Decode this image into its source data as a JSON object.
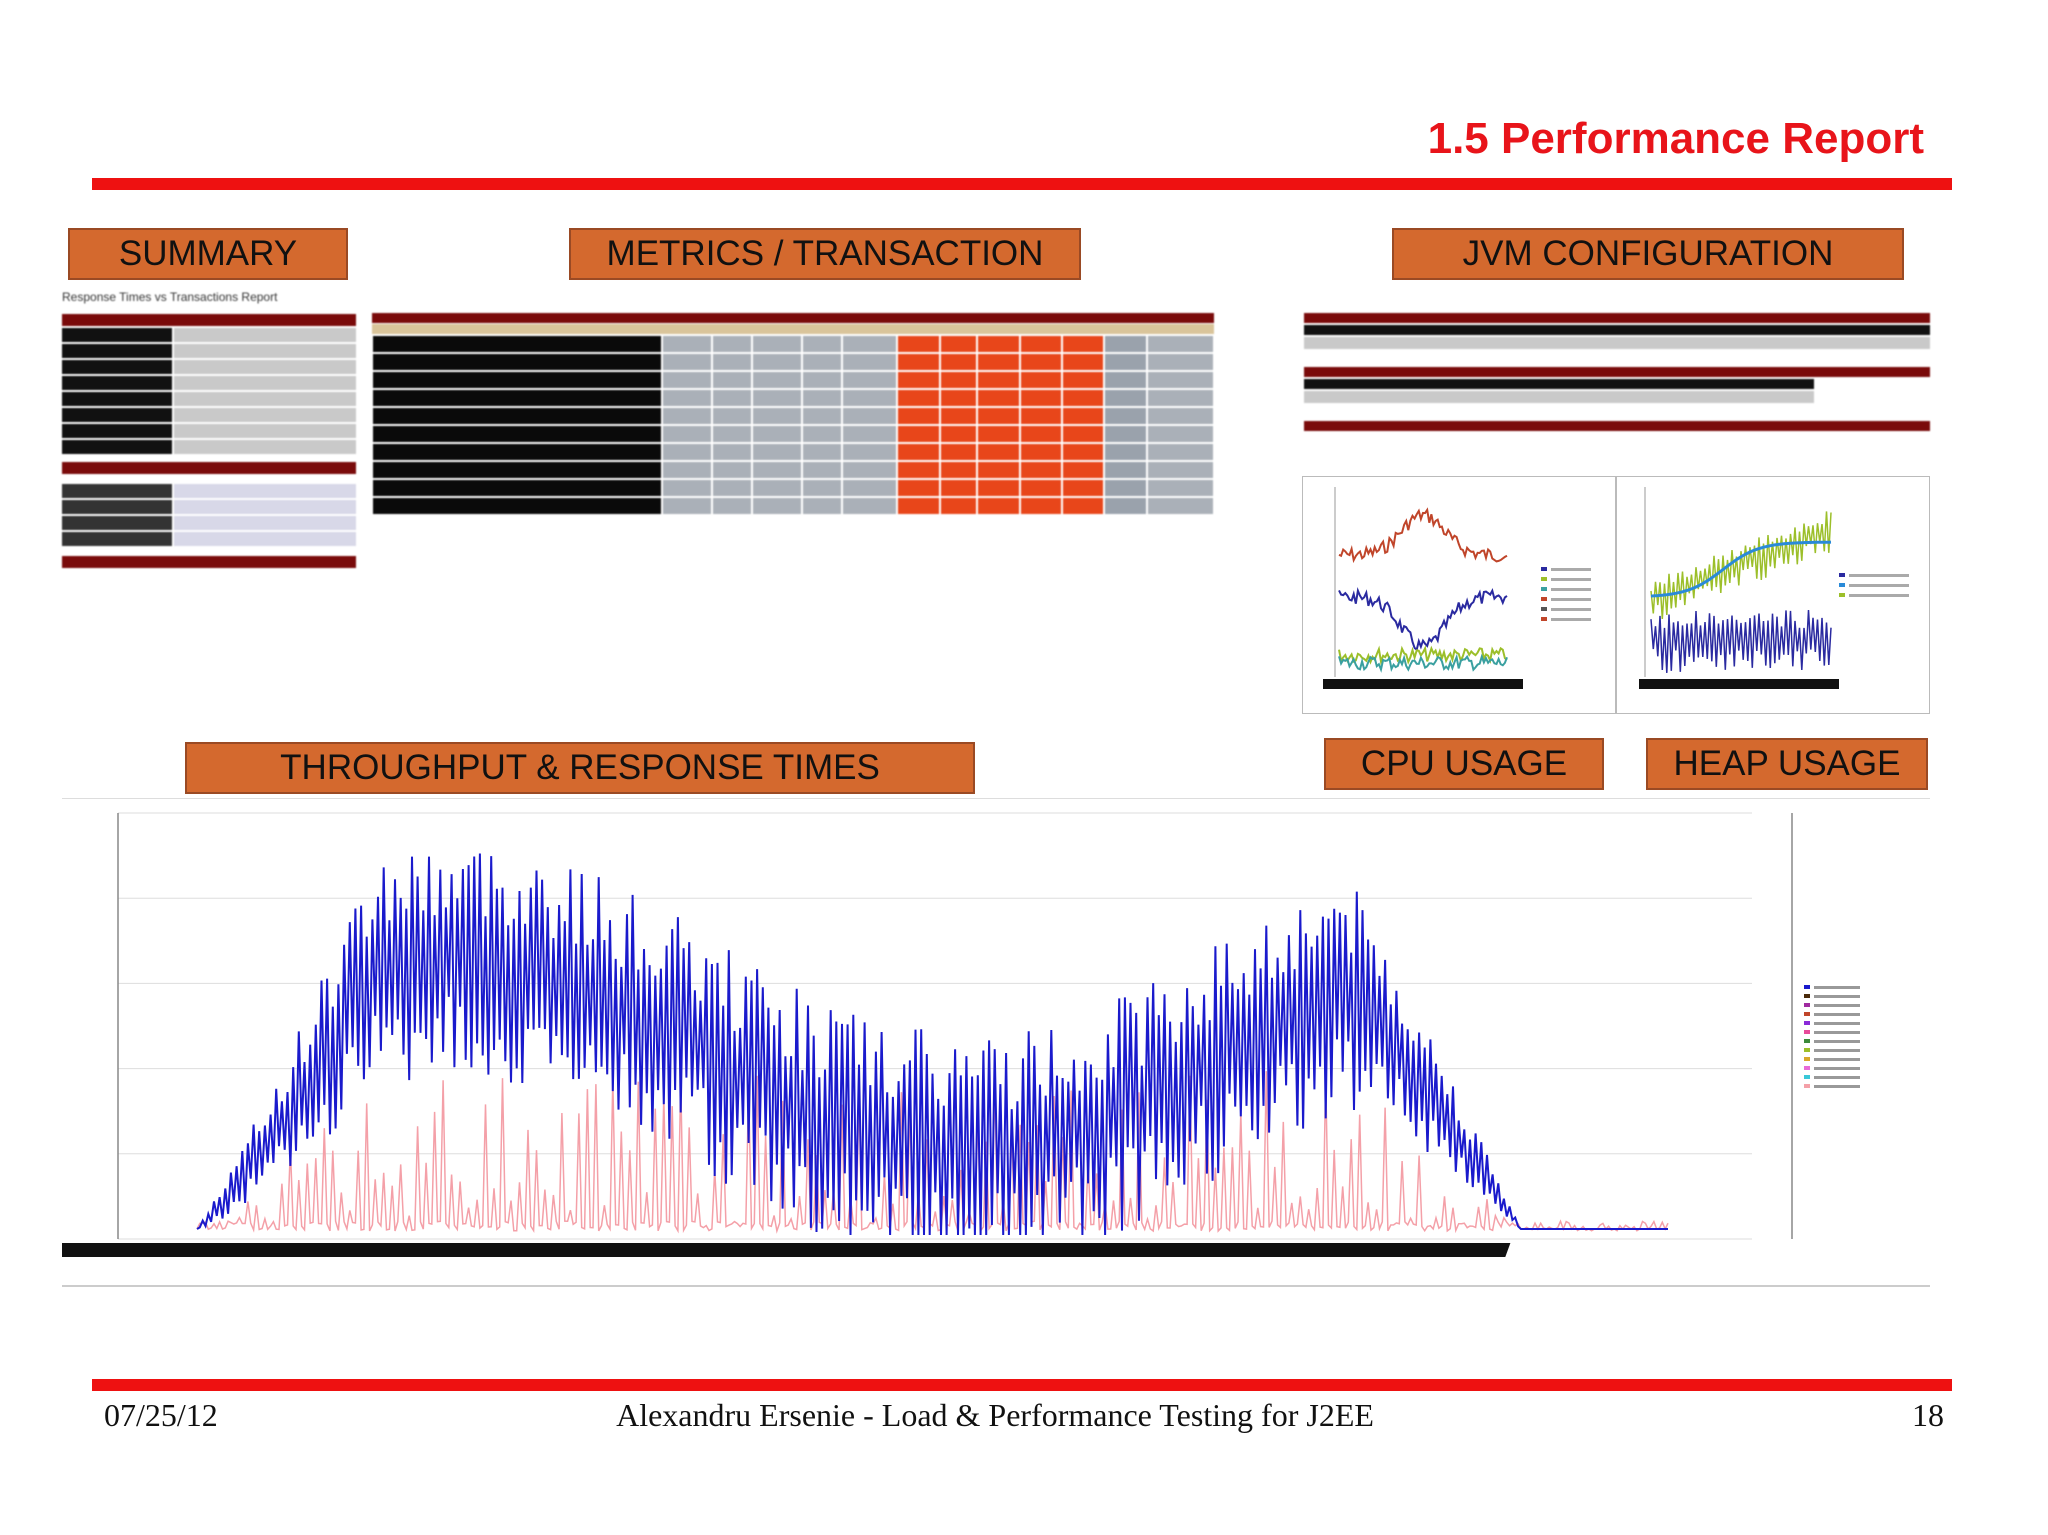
{
  "slide": {
    "title": "1.5 Performance Report"
  },
  "sections": {
    "summary": "SUMMARY",
    "metrics": "METRICS / TRANSACTION",
    "jvm": "JVM CONFIGURATION",
    "throughput": "THROUGHPUT & RESPONSE TIMES",
    "cpu": "CPU USAGE",
    "heap": "HEAP USAGE"
  },
  "summary_panel": {
    "heading": "Response Times vs Transactions Report"
  },
  "footer": {
    "date": "07/25/12",
    "center": "Alexandru Ersenie - Load & Performance Testing for J2EE",
    "page": "18"
  },
  "colors": {
    "accent_red": "#ee1111",
    "title_red": "#e8141a",
    "label_orange": "#d4692e",
    "series_blue": "#1a1acc",
    "series_pink": "#f4a0a8"
  }
}
